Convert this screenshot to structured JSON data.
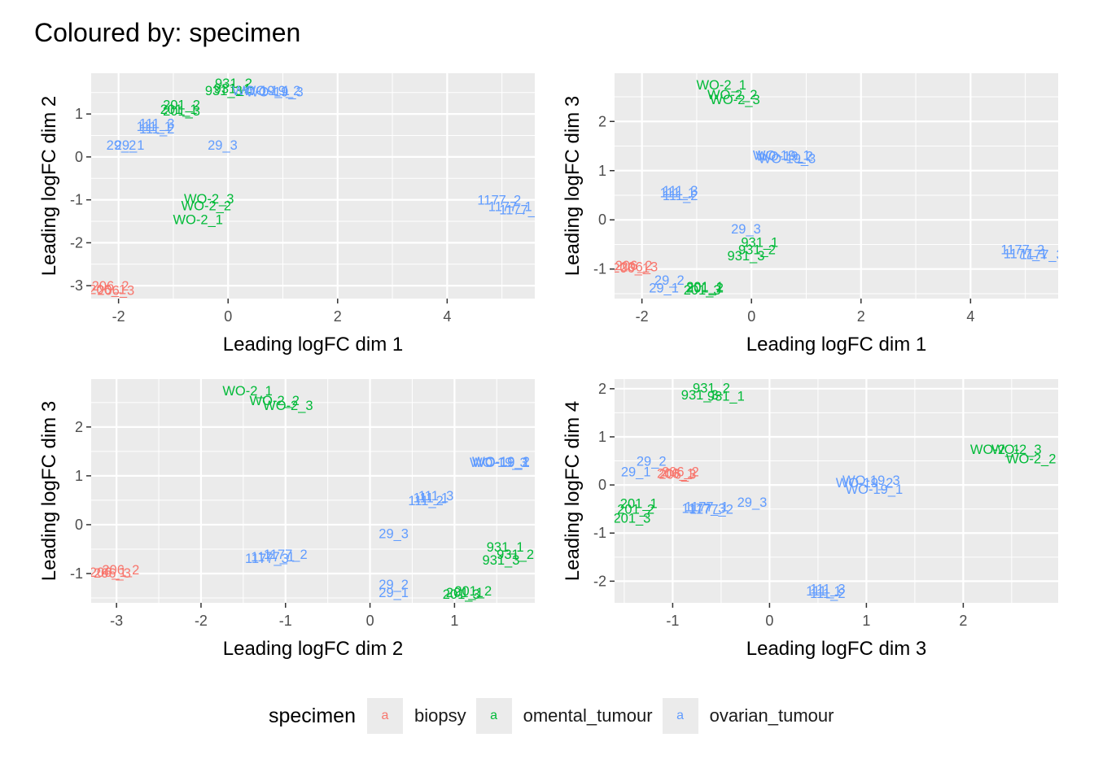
{
  "title": "Coloured by: specimen",
  "legend": {
    "title": "specimen",
    "glyph": "a",
    "entries": [
      {
        "label": "biopsy",
        "color": "#F8766D"
      },
      {
        "label": "omental_tumour",
        "color": "#00BA38"
      },
      {
        "label": "ovarian_tumour",
        "color": "#619CFF"
      }
    ]
  },
  "chart_data": [
    {
      "type": "scatter",
      "xlabel": "Leading logFC dim 1",
      "ylabel": "Leading logFC dim 2",
      "xlim": [
        -2.5,
        5.6
      ],
      "ylim": [
        -3.3,
        1.95
      ],
      "xticks": [
        -2,
        0,
        2,
        4
      ],
      "yticks": [
        -3,
        -2,
        -1,
        0,
        1
      ],
      "points": [
        {
          "label": "206_2",
          "x": -2.15,
          "y": -3.0,
          "group": "biopsy"
        },
        {
          "label": "206_1",
          "x": -2.2,
          "y": -3.08,
          "group": "biopsy"
        },
        {
          "label": "206_3",
          "x": -2.05,
          "y": -3.1,
          "group": "biopsy"
        },
        {
          "label": "931_2",
          "x": 0.1,
          "y": 1.72,
          "group": "omental_tumour"
        },
        {
          "label": "931_1",
          "x": 0.08,
          "y": 1.6,
          "group": "omental_tumour"
        },
        {
          "label": "931_3",
          "x": -0.08,
          "y": 1.55,
          "group": "omental_tumour"
        },
        {
          "label": "201_2",
          "x": -0.85,
          "y": 1.22,
          "group": "omental_tumour"
        },
        {
          "label": "201_1",
          "x": -0.9,
          "y": 1.12,
          "group": "omental_tumour"
        },
        {
          "label": "201_3",
          "x": -0.85,
          "y": 1.08,
          "group": "omental_tumour"
        },
        {
          "label": "WO-2_3",
          "x": -0.35,
          "y": -0.97,
          "group": "omental_tumour"
        },
        {
          "label": "WO-2_2",
          "x": -0.4,
          "y": -1.13,
          "group": "omental_tumour"
        },
        {
          "label": "WO-2_1",
          "x": -0.55,
          "y": -1.45,
          "group": "omental_tumour"
        },
        {
          "label": "WO-19_1",
          "x": 0.6,
          "y": 1.55,
          "group": "ovarian_tumour"
        },
        {
          "label": "WO-19_2",
          "x": 0.8,
          "y": 1.55,
          "group": "ovarian_tumour"
        },
        {
          "label": "WO-19_3",
          "x": 0.85,
          "y": 1.52,
          "group": "ovarian_tumour"
        },
        {
          "label": "111_3",
          "x": -1.3,
          "y": 0.78,
          "group": "ovarian_tumour"
        },
        {
          "label": "111_1",
          "x": -1.35,
          "y": 0.72,
          "group": "ovarian_tumour"
        },
        {
          "label": "111_2",
          "x": -1.3,
          "y": 0.66,
          "group": "ovarian_tumour"
        },
        {
          "label": "29_2",
          "x": -1.95,
          "y": 0.28,
          "group": "ovarian_tumour"
        },
        {
          "label": "29_1",
          "x": -1.8,
          "y": 0.28,
          "group": "ovarian_tumour"
        },
        {
          "label": "29_3",
          "x": -0.1,
          "y": 0.28,
          "group": "ovarian_tumour"
        },
        {
          "label": "1177_2",
          "x": 4.95,
          "y": -1.0,
          "group": "ovarian_tumour"
        },
        {
          "label": "1177_1",
          "x": 5.15,
          "y": -1.15,
          "group": "ovarian_tumour"
        },
        {
          "label": "1177_3",
          "x": 5.35,
          "y": -1.22,
          "group": "ovarian_tumour"
        }
      ]
    },
    {
      "type": "scatter",
      "xlabel": "Leading logFC dim 1",
      "ylabel": "Leading logFC dim 3",
      "xlim": [
        -2.5,
        5.6
      ],
      "ylim": [
        -1.6,
        2.98
      ],
      "xticks": [
        -2,
        0,
        2,
        4
      ],
      "yticks": [
        -1,
        0,
        1,
        2
      ],
      "points": [
        {
          "label": "206_2",
          "x": -2.15,
          "y": -0.92,
          "group": "biopsy"
        },
        {
          "label": "206_1",
          "x": -2.2,
          "y": -0.97,
          "group": "biopsy"
        },
        {
          "label": "206_3",
          "x": -2.05,
          "y": -0.95,
          "group": "biopsy"
        },
        {
          "label": "WO-2_1",
          "x": -0.55,
          "y": 2.75,
          "group": "omental_tumour"
        },
        {
          "label": "WO-2_2",
          "x": -0.35,
          "y": 2.55,
          "group": "omental_tumour"
        },
        {
          "label": "WO-2_3",
          "x": -0.3,
          "y": 2.45,
          "group": "omental_tumour"
        },
        {
          "label": "931_1",
          "x": 0.15,
          "y": -0.45,
          "group": "omental_tumour"
        },
        {
          "label": "931_2",
          "x": 0.1,
          "y": -0.6,
          "group": "omental_tumour"
        },
        {
          "label": "931_3",
          "x": -0.1,
          "y": -0.72,
          "group": "omental_tumour"
        },
        {
          "label": "201_1",
          "x": -0.85,
          "y": -1.35,
          "group": "omental_tumour"
        },
        {
          "label": "201_2",
          "x": -0.85,
          "y": -1.38,
          "group": "omental_tumour"
        },
        {
          "label": "201_3",
          "x": -0.9,
          "y": -1.42,
          "group": "omental_tumour"
        },
        {
          "label": "WO-19_1",
          "x": 0.55,
          "y": 1.32,
          "group": "ovarian_tumour"
        },
        {
          "label": "WO-19_2",
          "x": 0.6,
          "y": 1.3,
          "group": "ovarian_tumour"
        },
        {
          "label": "WO-19_3",
          "x": 0.65,
          "y": 1.25,
          "group": "ovarian_tumour"
        },
        {
          "label": "111_3",
          "x": -1.3,
          "y": 0.6,
          "group": "ovarian_tumour"
        },
        {
          "label": "111_1",
          "x": -1.35,
          "y": 0.56,
          "group": "ovarian_tumour"
        },
        {
          "label": "111_2",
          "x": -1.3,
          "y": 0.5,
          "group": "ovarian_tumour"
        },
        {
          "label": "29_3",
          "x": -0.1,
          "y": -0.18,
          "group": "ovarian_tumour"
        },
        {
          "label": "29_2",
          "x": -1.5,
          "y": -1.22,
          "group": "ovarian_tumour"
        },
        {
          "label": "29_1",
          "x": -1.6,
          "y": -1.38,
          "group": "ovarian_tumour"
        },
        {
          "label": "1177_2",
          "x": 4.95,
          "y": -0.6,
          "group": "ovarian_tumour"
        },
        {
          "label": "1177_1",
          "x": 5.0,
          "y": -0.68,
          "group": "ovarian_tumour"
        },
        {
          "label": "1177_3",
          "x": 5.3,
          "y": -0.7,
          "group": "ovarian_tumour"
        }
      ]
    },
    {
      "type": "scatter",
      "xlabel": "Leading logFC dim 2",
      "ylabel": "Leading logFC dim 3",
      "xlim": [
        -3.3,
        1.95
      ],
      "ylim": [
        -1.6,
        2.98
      ],
      "xticks": [
        -3,
        -2,
        -1,
        0,
        1
      ],
      "yticks": [
        -1,
        0,
        1,
        2
      ],
      "points": [
        {
          "label": "206_2",
          "x": -2.95,
          "y": -0.92,
          "group": "biopsy"
        },
        {
          "label": "206_1",
          "x": -3.1,
          "y": -0.97,
          "group": "biopsy"
        },
        {
          "label": "206_3",
          "x": -3.05,
          "y": -0.98,
          "group": "biopsy"
        },
        {
          "label": "WO-2_1",
          "x": -1.45,
          "y": 2.75,
          "group": "omental_tumour"
        },
        {
          "label": "WO-2_2",
          "x": -1.13,
          "y": 2.55,
          "group": "omental_tumour"
        },
        {
          "label": "WO-2_3",
          "x": -0.97,
          "y": 2.45,
          "group": "omental_tumour"
        },
        {
          "label": "931_1",
          "x": 1.6,
          "y": -0.45,
          "group": "omental_tumour"
        },
        {
          "label": "931_2",
          "x": 1.72,
          "y": -0.6,
          "group": "omental_tumour"
        },
        {
          "label": "931_3",
          "x": 1.55,
          "y": -0.72,
          "group": "omental_tumour"
        },
        {
          "label": "201_2",
          "x": 1.22,
          "y": -1.35,
          "group": "omental_tumour"
        },
        {
          "label": "201_1",
          "x": 1.12,
          "y": -1.38,
          "group": "omental_tumour"
        },
        {
          "label": "201_3",
          "x": 1.08,
          "y": -1.42,
          "group": "omental_tumour"
        },
        {
          "label": "WO-19_1",
          "x": 1.55,
          "y": 1.28,
          "group": "ovarian_tumour"
        },
        {
          "label": "WO-19_2",
          "x": 1.55,
          "y": 1.3,
          "group": "ovarian_tumour"
        },
        {
          "label": "WO-19_3",
          "x": 1.52,
          "y": 1.28,
          "group": "ovarian_tumour"
        },
        {
          "label": "111_3",
          "x": 0.78,
          "y": 0.6,
          "group": "ovarian_tumour"
        },
        {
          "label": "111_1",
          "x": 0.72,
          "y": 0.56,
          "group": "ovarian_tumour"
        },
        {
          "label": "111_2",
          "x": 0.66,
          "y": 0.5,
          "group": "ovarian_tumour"
        },
        {
          "label": "29_3",
          "x": 0.28,
          "y": -0.18,
          "group": "ovarian_tumour"
        },
        {
          "label": "29_2",
          "x": 0.28,
          "y": -1.22,
          "group": "ovarian_tumour"
        },
        {
          "label": "29_1",
          "x": 0.28,
          "y": -1.38,
          "group": "ovarian_tumour"
        },
        {
          "label": "1177_2",
          "x": -1.0,
          "y": -0.6,
          "group": "ovarian_tumour"
        },
        {
          "label": "1177_1",
          "x": -1.15,
          "y": -0.65,
          "group": "ovarian_tumour"
        },
        {
          "label": "1177_3",
          "x": -1.22,
          "y": -0.68,
          "group": "ovarian_tumour"
        }
      ]
    },
    {
      "type": "scatter",
      "xlabel": "Leading logFC dim 3",
      "ylabel": "Leading logFC dim 4",
      "xlim": [
        -1.6,
        2.98
      ],
      "ylim": [
        -2.45,
        2.2
      ],
      "xticks": [
        -1,
        0,
        1,
        2
      ],
      "yticks": [
        -2,
        -1,
        0,
        1,
        2
      ],
      "points": [
        {
          "label": "206_2",
          "x": -0.92,
          "y": 0.28,
          "group": "biopsy"
        },
        {
          "label": "206_1",
          "x": -0.97,
          "y": 0.25,
          "group": "biopsy"
        },
        {
          "label": "206_3",
          "x": -0.95,
          "y": 0.23,
          "group": "biopsy"
        },
        {
          "label": "931_2",
          "x": -0.6,
          "y": 2.02,
          "group": "omental_tumour"
        },
        {
          "label": "931_3",
          "x": -0.72,
          "y": 1.88,
          "group": "omental_tumour"
        },
        {
          "label": "931_1",
          "x": -0.45,
          "y": 1.85,
          "group": "omental_tumour"
        },
        {
          "label": "201_1",
          "x": -1.35,
          "y": -0.38,
          "group": "omental_tumour"
        },
        {
          "label": "201_2",
          "x": -1.38,
          "y": -0.5,
          "group": "omental_tumour"
        },
        {
          "label": "201_3",
          "x": -1.42,
          "y": -0.68,
          "group": "omental_tumour"
        },
        {
          "label": "WO-2_1",
          "x": 2.33,
          "y": 0.75,
          "group": "omental_tumour"
        },
        {
          "label": "WO-2_3",
          "x": 2.55,
          "y": 0.75,
          "group": "omental_tumour"
        },
        {
          "label": "WO-2_2",
          "x": 2.7,
          "y": 0.55,
          "group": "omental_tumour"
        },
        {
          "label": "WO-19_3",
          "x": 1.05,
          "y": 0.1,
          "group": "ovarian_tumour"
        },
        {
          "label": "WO-19_2",
          "x": 0.98,
          "y": 0.05,
          "group": "ovarian_tumour"
        },
        {
          "label": "WO-19_1",
          "x": 1.08,
          "y": -0.08,
          "group": "ovarian_tumour"
        },
        {
          "label": "29_2",
          "x": -1.22,
          "y": 0.5,
          "group": "ovarian_tumour"
        },
        {
          "label": "29_1",
          "x": -1.38,
          "y": 0.28,
          "group": "ovarian_tumour"
        },
        {
          "label": "29_3",
          "x": -0.18,
          "y": -0.35,
          "group": "ovarian_tumour"
        },
        {
          "label": "1177_1",
          "x": -0.65,
          "y": -0.45,
          "group": "ovarian_tumour"
        },
        {
          "label": "1177_3",
          "x": -0.68,
          "y": -0.48,
          "group": "ovarian_tumour"
        },
        {
          "label": "1177_2",
          "x": -0.6,
          "y": -0.5,
          "group": "ovarian_tumour"
        },
        {
          "label": "111_3",
          "x": 0.6,
          "y": -2.15,
          "group": "ovarian_tumour"
        },
        {
          "label": "111_1",
          "x": 0.56,
          "y": -2.2,
          "group": "ovarian_tumour"
        },
        {
          "label": "111_2",
          "x": 0.6,
          "y": -2.25,
          "group": "ovarian_tumour"
        }
      ]
    }
  ]
}
